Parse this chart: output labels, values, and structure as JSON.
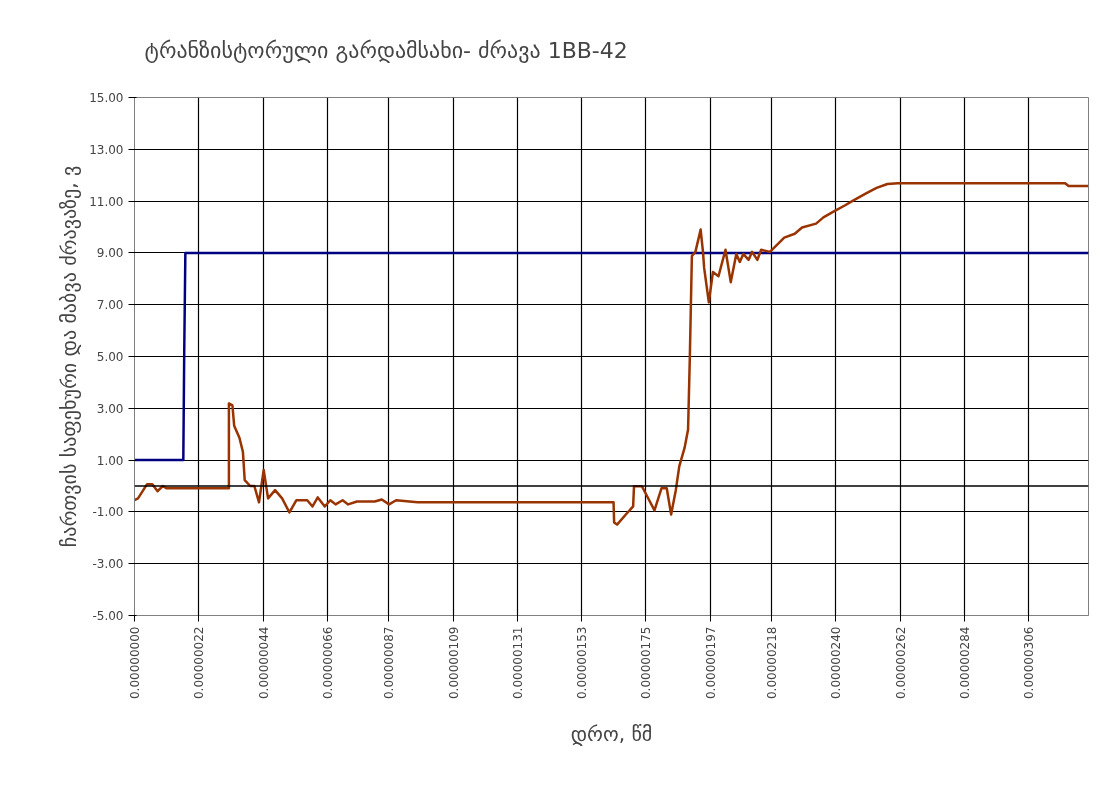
{
  "chart_data": {
    "type": "line",
    "title": "ტრანზისტორული გარდამსახი- ძრავა 1BB-42",
    "xlabel": "დრო, წმ",
    "ylabel": "ჩართვის საფეხური და მაბვა ძრავაზე, ვ",
    "xlim": [
      0,
      3.264e-06
    ],
    "xticks": [
      {
        "value": 0,
        "label": "0.00000000"
      },
      {
        "value": 2.2e-07,
        "label": "0.00000022"
      },
      {
        "value": 4.4e-07,
        "label": "0.00000044"
      },
      {
        "value": 6.6e-07,
        "label": "0.00000066"
      },
      {
        "value": 8.7e-07,
        "label": "0.00000087"
      },
      {
        "value": 1.09e-06,
        "label": "0.00000109"
      },
      {
        "value": 1.31e-06,
        "label": "0.00000131"
      },
      {
        "value": 1.53e-06,
        "label": "0.00000153"
      },
      {
        "value": 1.75e-06,
        "label": "0.00000175"
      },
      {
        "value": 1.97e-06,
        "label": "0.00000197"
      },
      {
        "value": 2.18e-06,
        "label": "0.00000218"
      },
      {
        "value": 2.4e-06,
        "label": "0.00000240"
      },
      {
        "value": 2.62e-06,
        "label": "0.00000262"
      },
      {
        "value": 2.84e-06,
        "label": "0.00000284"
      },
      {
        "value": 3.06e-06,
        "label": "0.00000306"
      }
    ],
    "ylim": [
      -5,
      15
    ],
    "yticks": [
      {
        "value": -5,
        "label": "-5.00"
      },
      {
        "value": -3,
        "label": "-3.00"
      },
      {
        "value": -1,
        "label": "-1.00"
      },
      {
        "value": 1,
        "label": "1.00"
      },
      {
        "value": 3,
        "label": "3.00"
      },
      {
        "value": 5,
        "label": "5.00"
      },
      {
        "value": 7,
        "label": "7.00"
      },
      {
        "value": 9,
        "label": "9.00"
      },
      {
        "value": 11,
        "label": "11.00"
      },
      {
        "value": 13,
        "label": "13.00"
      },
      {
        "value": 15,
        "label": "15.00"
      }
    ],
    "grid": true,
    "ref_lines": [
      {
        "axis": "y",
        "value": 0,
        "color": "#000000"
      }
    ],
    "series": [
      {
        "color": "#000080",
        "x": [
          0,
          1.67e-07,
          1.7e-07,
          1.74e-07,
          3.264e-06
        ],
        "values": [
          1,
          1,
          5,
          9,
          9
        ]
      },
      {
        "color": "#993300",
        "x": [
          0,
          1.2e-08,
          4.3e-08,
          6.1e-08,
          7.9e-08,
          9.7e-08,
          1.1e-07,
          3.23e-07,
          3.23e-07,
          3.35e-07,
          3.41e-07,
          3.59e-07,
          3.71e-07,
          3.77e-07,
          3.96e-07,
          4.1e-07,
          4.26e-07,
          4.42e-07,
          4.57e-07,
          4.81e-07,
          5.05e-07,
          5.3e-07,
          5.54e-07,
          5.91e-07,
          6.09e-07,
          6.27e-07,
          6.51e-07,
          6.7e-07,
          6.88e-07,
          7.12e-07,
          7.31e-07,
          7.61e-07,
          8.22e-07,
          8.46e-07,
          8.71e-07,
          8.95e-07,
          9.68e-07,
          1.383e-06,
          1.639e-06,
          1.641e-06,
          1.651e-06,
          1.681e-06,
          1.706e-06,
          1.709e-06,
          1.736e-06,
          1.779e-06,
          1.803e-06,
          1.821e-06,
          1.836e-06,
          1.852e-06,
          1.864e-06,
          1.882e-06,
          1.894e-06,
          1.9e-06,
          1.907e-06,
          1.919e-06,
          1.937e-06,
          1.945e-06,
          1.949e-06,
          1.965e-06,
          1.979e-06,
          1.998e-06,
          2.022e-06,
          2.04e-06,
          2.059e-06,
          2.071e-06,
          2.083e-06,
          2.101e-06,
          2.113e-06,
          2.131e-06,
          2.144e-06,
          2.174e-06,
          2.223e-06,
          2.259e-06,
          2.284e-06,
          2.332e-06,
          2.357e-06,
          2.393e-06,
          2.43e-06,
          2.454e-06,
          2.503e-06,
          2.539e-06,
          2.576e-06,
          2.612e-06,
          3.184e-06,
          3.196e-06,
          3.263e-06
        ],
        "values": [
          -0.55,
          -0.48,
          0.07,
          0.07,
          -0.2,
          0.0,
          -0.09,
          -0.09,
          3.19,
          3.11,
          2.33,
          1.86,
          1.31,
          0.23,
          0.0,
          0.0,
          -0.63,
          0.62,
          -0.48,
          -0.16,
          -0.48,
          -1.02,
          -0.55,
          -0.55,
          -0.79,
          -0.44,
          -0.79,
          -0.55,
          -0.71,
          -0.55,
          -0.71,
          -0.6,
          -0.6,
          -0.52,
          -0.71,
          -0.55,
          -0.63,
          -0.63,
          -0.63,
          -1.41,
          -1.49,
          -1.1,
          -0.79,
          -0.01,
          -0.01,
          -0.94,
          -0.09,
          -0.09,
          -1.1,
          -0.16,
          0.77,
          1.47,
          2.18,
          4.98,
          8.88,
          9.04,
          9.9,
          9.04,
          8.42,
          7.09,
          8.26,
          8.1,
          9.12,
          7.87,
          8.96,
          8.65,
          8.96,
          8.73,
          9.04,
          8.73,
          9.12,
          9.04,
          9.59,
          9.74,
          9.98,
          10.13,
          10.37,
          10.6,
          10.83,
          10.99,
          11.3,
          11.51,
          11.66,
          11.69,
          11.69,
          11.58,
          11.58
        ]
      }
    ]
  }
}
